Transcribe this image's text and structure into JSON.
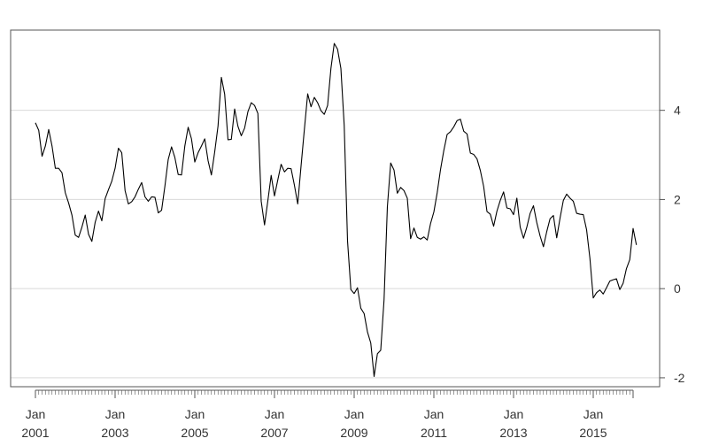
{
  "chart_data": {
    "type": "line",
    "title": "",
    "xlabel": "",
    "ylabel": "",
    "ylim": [
      -2.2,
      5.8
    ],
    "yticks": [
      -2,
      0,
      2,
      4
    ],
    "y_axis_side": "right",
    "grid": "horizontal",
    "x_tick_labels": [
      {
        "month": "Jan",
        "year": "2001"
      },
      {
        "month": "Jan",
        "year": "2003"
      },
      {
        "month": "Jan",
        "year": "2005"
      },
      {
        "month": "Jan",
        "year": "2007"
      },
      {
        "month": "Jan",
        "year": "2009"
      },
      {
        "month": "Jan",
        "year": "2011"
      },
      {
        "month": "Jan",
        "year": "2013"
      },
      {
        "month": "Jan",
        "year": "2015"
      }
    ],
    "colors": {
      "line": "#000000",
      "grid": "#d9d9d9",
      "axis": "#555555"
    },
    "series": [
      {
        "frequency": "monthly",
        "start": "2001-01",
        "values": [
          3.72,
          3.55,
          2.97,
          3.2,
          3.57,
          3.2,
          2.7,
          2.7,
          2.6,
          2.15,
          1.92,
          1.65,
          1.2,
          1.15,
          1.38,
          1.65,
          1.22,
          1.06,
          1.49,
          1.74,
          1.52,
          2.02,
          2.22,
          2.41,
          2.7,
          3.15,
          3.05,
          2.2,
          1.9,
          1.95,
          2.06,
          2.23,
          2.38,
          2.06,
          1.96,
          2.06,
          2.05,
          1.7,
          1.76,
          2.3,
          2.9,
          3.18,
          2.94,
          2.56,
          2.55,
          3.2,
          3.62,
          3.36,
          2.84,
          3.05,
          3.2,
          3.36,
          2.87,
          2.55,
          3.07,
          3.65,
          4.74,
          4.36,
          3.34,
          3.35,
          4.03,
          3.64,
          3.43,
          3.6,
          3.97,
          4.17,
          4.11,
          3.93,
          1.96,
          1.43,
          1.97,
          2.54,
          2.08,
          2.44,
          2.79,
          2.62,
          2.7,
          2.69,
          2.32,
          1.9,
          2.75,
          3.57,
          4.37,
          4.08,
          4.29,
          4.17,
          3.99,
          3.91,
          4.11,
          4.94,
          5.5,
          5.37,
          4.94,
          3.66,
          1.07,
          -0.02,
          -0.11,
          0.02,
          -0.44,
          -0.56,
          -0.97,
          -1.22,
          -1.97,
          -1.46,
          -1.38,
          -0.25,
          1.84,
          2.82,
          2.66,
          2.14,
          2.27,
          2.2,
          2.03,
          1.12,
          1.36,
          1.15,
          1.11,
          1.16,
          1.09,
          1.46,
          1.72,
          2.15,
          2.67,
          3.1,
          3.46,
          3.52,
          3.63,
          3.77,
          3.8,
          3.53,
          3.47,
          3.04,
          3.01,
          2.91,
          2.65,
          2.29,
          1.73,
          1.67,
          1.4,
          1.74,
          1.98,
          2.17,
          1.81,
          1.79,
          1.66,
          2.03,
          1.38,
          1.13,
          1.38,
          1.69,
          1.86,
          1.48,
          1.18,
          0.94,
          1.28,
          1.57,
          1.64,
          1.14,
          1.58,
          1.98,
          2.12,
          2.03,
          1.96,
          1.69,
          1.67,
          1.66,
          1.32,
          0.68,
          -0.21,
          -0.09,
          -0.03,
          -0.12,
          0.02,
          0.17,
          0.2,
          0.22,
          -0.02,
          0.12,
          0.45,
          0.65,
          1.35,
          0.98
        ]
      }
    ]
  }
}
